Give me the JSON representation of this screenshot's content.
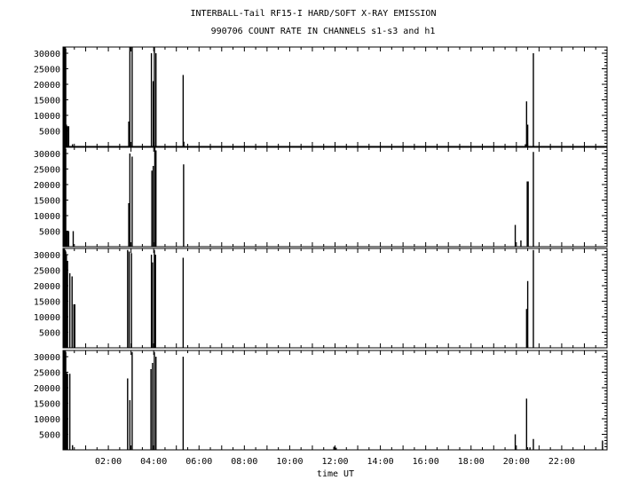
{
  "chart_data": {
    "type": "bar",
    "title": "INTERBALL-Tail RF15-I HARD/SOFT X-RAY EMISSION",
    "subtitle": "990706  COUNT RATE IN CHANNELS s1-s3 and h1",
    "xlabel": "time UT",
    "x_unit": "hours UT",
    "xlim": [
      0,
      24
    ],
    "x_tick_labels": [
      "02:00",
      "04:00",
      "06:00",
      "08:00",
      "10:00",
      "12:00",
      "14:00",
      "16:00",
      "18:00",
      "20:00",
      "22:00"
    ],
    "x_tick_values": [
      2,
      4,
      6,
      8,
      10,
      12,
      14,
      16,
      18,
      20,
      22
    ],
    "ylim": [
      0,
      32000
    ],
    "y_tick_labels": [
      "5000",
      "10000",
      "15000",
      "20000",
      "25000",
      "30000"
    ],
    "y_tick_values": [
      5000,
      10000,
      15000,
      20000,
      25000,
      30000
    ],
    "panels": [
      {
        "x": [
          0.02,
          0.04,
          0.06,
          0.08,
          0.1,
          0.12,
          0.15,
          0.2,
          0.25,
          0.42,
          2.9,
          2.95,
          3.05,
          3.9,
          3.98,
          4.03,
          4.1,
          5.3,
          5.33,
          20.4,
          20.45,
          20.5,
          20.75
        ],
        "y": [
          32000,
          31500,
          32000,
          31000,
          32000,
          31500,
          7000,
          6500,
          6500,
          700,
          8000,
          32000,
          32500,
          30000,
          21000,
          32000,
          30000,
          23000,
          1500,
          700,
          14500,
          7000,
          30000
        ]
      },
      {
        "x": [
          0.02,
          0.04,
          0.06,
          0.08,
          0.1,
          0.12,
          0.15,
          0.2,
          0.25,
          0.45,
          2.9,
          2.95,
          3.05,
          3.92,
          3.98,
          4.05,
          4.1,
          5.32,
          19.95,
          20.2,
          20.48,
          20.52,
          20.75
        ],
        "y": [
          32000,
          31500,
          32000,
          31000,
          32000,
          31500,
          5000,
          5000,
          5000,
          5000,
          14000,
          30000,
          29000,
          24500,
          26000,
          32000,
          31000,
          26500,
          7000,
          2000,
          21000,
          21000,
          30500
        ]
      },
      {
        "x": [
          0.02,
          0.04,
          0.06,
          0.08,
          0.1,
          0.12,
          0.15,
          0.2,
          0.3,
          0.4,
          0.48,
          0.52,
          2.85,
          2.92,
          3.02,
          3.9,
          3.95,
          4.03,
          4.08,
          5.3,
          20.45,
          20.5,
          20.75
        ],
        "y": [
          32000,
          31000,
          32000,
          30500,
          31500,
          31000,
          30000,
          28000,
          24000,
          23000,
          14000,
          14000,
          31500,
          31000,
          30500,
          30000,
          27500,
          31500,
          30000,
          29000,
          12500,
          21500,
          31500
        ]
      },
      {
        "x": [
          0.02,
          0.04,
          0.06,
          0.08,
          0.1,
          0.12,
          0.15,
          0.2,
          0.3,
          0.42,
          2.85,
          2.95,
          3.05,
          3.88,
          3.95,
          4.03,
          4.1,
          5.3,
          11.95,
          12.05,
          19.95,
          20.45,
          20.6,
          20.75,
          23.8
        ],
        "y": [
          32000,
          31500,
          32000,
          31000,
          32000,
          31500,
          25000,
          24500,
          24500,
          1500,
          23000,
          16000,
          31500,
          26000,
          28000,
          31500,
          30000,
          30000,
          1000,
          700,
          5000,
          16500,
          800,
          3500,
          3000
        ]
      }
    ],
    "grid": false,
    "legend": "none"
  }
}
